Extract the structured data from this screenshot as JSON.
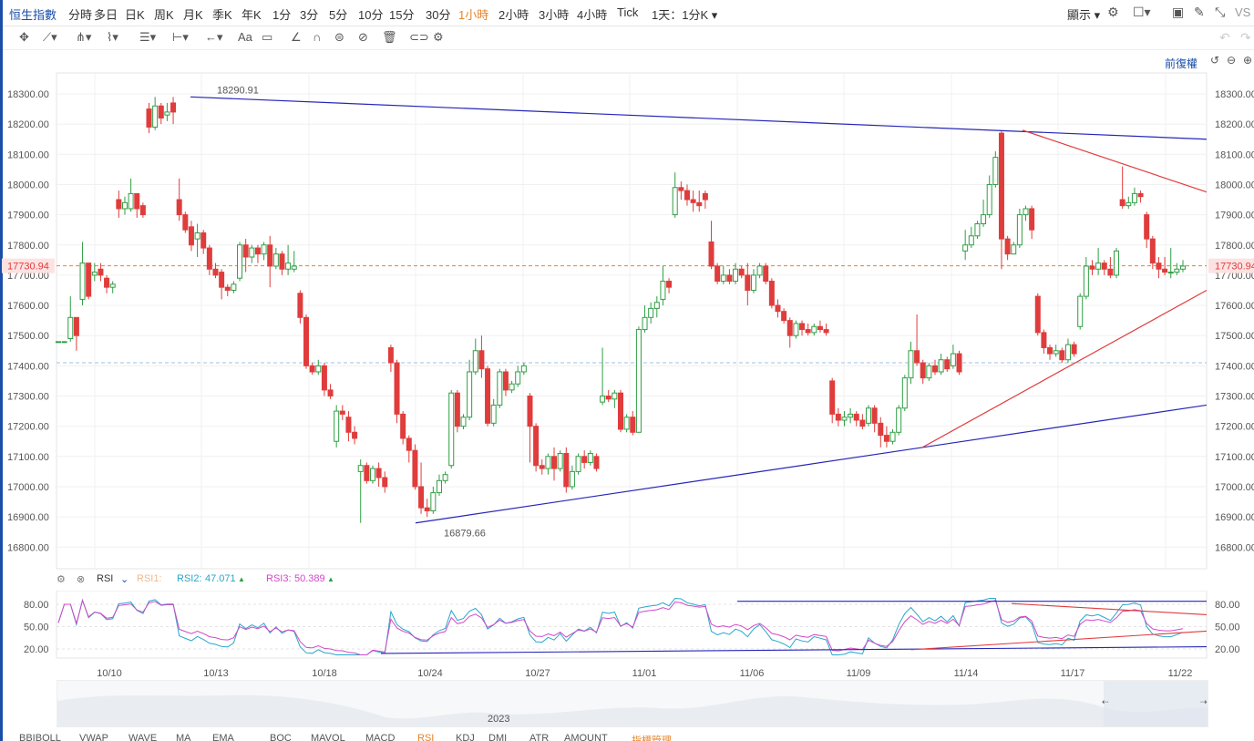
{
  "toolbar": {
    "title": "恒生指數",
    "intervals": [
      {
        "label": "分時",
        "active": false
      },
      {
        "label": "多日",
        "active": false
      },
      {
        "label": "日K",
        "active": false
      },
      {
        "label": "周K",
        "active": false
      },
      {
        "label": "月K",
        "active": false
      },
      {
        "label": "季K",
        "active": false
      },
      {
        "label": "年K",
        "active": false
      },
      {
        "label": "1分",
        "active": false
      },
      {
        "label": "3分",
        "active": false
      },
      {
        "label": "5分",
        "active": false
      },
      {
        "label": "10分",
        "active": false
      },
      {
        "label": "15分",
        "active": false
      },
      {
        "label": "30分",
        "active": false
      },
      {
        "label": "1小時",
        "active": true
      },
      {
        "label": "2小時",
        "active": false
      },
      {
        "label": "3小時",
        "active": false
      },
      {
        "label": "4小時",
        "active": false
      },
      {
        "label": "Tick",
        "active": false
      },
      {
        "label": "1天：1分K",
        "active": false
      }
    ],
    "display_label": "顯示",
    "vs_label": "VS"
  },
  "drawing_tools": [
    "crosshair-icon",
    "line-icon",
    "pitchfork-icon",
    "pattern-icon",
    "fib-icon",
    "measure-icon",
    "arrow-icon",
    "text-icon",
    "note-icon",
    "ruler-icon",
    "magnet-icon",
    "lock-icon",
    "hide-icon",
    "trash-icon",
    "eye-icon",
    "settings-icon"
  ],
  "adjust_label": "前復權",
  "price_axis": {
    "labels": [
      "18300.00",
      "18200.00",
      "18100.00",
      "18000.00",
      "17900.00",
      "17800.00",
      "17700.00",
      "17600.00",
      "17500.00",
      "17400.00",
      "17300.00",
      "17200.00",
      "17100.00",
      "17000.00",
      "16900.00",
      "16800.00"
    ],
    "last_price": "17730.94"
  },
  "annotations": {
    "high": "18290.91",
    "low": "16879.66"
  },
  "rsi": {
    "name": "RSI",
    "rsi1_label": "RSI1:",
    "rsi2_label": "RSI2:",
    "rsi2_value": "47.071",
    "rsi3_label": "RSI3:",
    "rsi3_value": "50.389",
    "axis": [
      "80.00",
      "50.00",
      "20.00"
    ]
  },
  "dates": [
    "10/10",
    "10/13",
    "10/18",
    "10/24",
    "10/27",
    "11/01",
    "11/06",
    "11/09",
    "11/14",
    "11/17",
    "11/22"
  ],
  "navigator_year": "2023",
  "bottom_indicators": [
    "BBIBOLL",
    "VWAP",
    "WAVE",
    "MA",
    "EMA",
    "BOC",
    "MAVOL",
    "MACD",
    "RSI",
    "KDJ",
    "DMI",
    "ATR",
    "AMOUNT",
    "指標管理"
  ],
  "colors": {
    "up": "#2f9e44",
    "down": "#e03c3c",
    "trend_blue": "#2626b8",
    "trend_red": "#e03c3c",
    "rsi2": "#2aa7c9",
    "rsi3": "#d048c8",
    "accent": "#e8832a"
  },
  "candles": [
    [
      17480,
      17480,
      17480,
      17480
    ],
    [
      17480,
      17480,
      17480,
      17480
    ],
    [
      17490,
      17560,
      17630,
      17480
    ],
    [
      17560,
      17500,
      17560,
      17450
    ],
    [
      17620,
      17740,
      17810,
      17600
    ],
    [
      17740,
      17630,
      17740,
      17620
    ],
    [
      17700,
      17710,
      17740,
      17680
    ],
    [
      17720,
      17700,
      17740,
      17680
    ],
    [
      17690,
      17660,
      17700,
      17640
    ],
    [
      17660,
      17670,
      17680,
      17640
    ],
    [
      17950,
      17920,
      17980,
      17890
    ],
    [
      17920,
      17940,
      17960,
      17900
    ],
    [
      17920,
      17970,
      18020,
      17910
    ],
    [
      17970,
      17920,
      17970,
      17890
    ],
    [
      17930,
      17900,
      17940,
      17890
    ],
    [
      18250,
      18190,
      18270,
      18170
    ],
    [
      18190,
      18260,
      18290,
      18180
    ],
    [
      18260,
      18220,
      18270,
      18200
    ],
    [
      18230,
      18240,
      18270,
      18210
    ],
    [
      18270,
      18240,
      18290,
      18200
    ],
    [
      17950,
      17900,
      18020,
      17880
    ],
    [
      17900,
      17850,
      17910,
      17840
    ],
    [
      17860,
      17800,
      17880,
      17780
    ],
    [
      17820,
      17840,
      17870,
      17760
    ],
    [
      17840,
      17790,
      17850,
      17770
    ],
    [
      17790,
      17720,
      17800,
      17700
    ],
    [
      17720,
      17700,
      17740,
      17690
    ],
    [
      17710,
      17660,
      17720,
      17620
    ],
    [
      17660,
      17650,
      17670,
      17630
    ],
    [
      17650,
      17670,
      17680,
      17640
    ],
    [
      17690,
      17800,
      17810,
      17680
    ],
    [
      17800,
      17760,
      17820,
      17710
    ],
    [
      17760,
      17790,
      17800,
      17740
    ],
    [
      17790,
      17770,
      17800,
      17740
    ],
    [
      17770,
      17800,
      17810,
      17750
    ],
    [
      17800,
      17730,
      17830,
      17660
    ],
    [
      17730,
      17770,
      17790,
      17720
    ],
    [
      17770,
      17720,
      17780,
      17700
    ],
    [
      17720,
      17740,
      17800,
      17700
    ],
    [
      17720,
      17730,
      17780,
      17710
    ],
    [
      17640,
      17560,
      17650,
      17540
    ],
    [
      17560,
      17400,
      17570,
      17390
    ],
    [
      17400,
      17380,
      17410,
      17370
    ],
    [
      17380,
      17400,
      17420,
      17370
    ],
    [
      17400,
      17320,
      17410,
      17300
    ],
    [
      17320,
      17300,
      17340,
      17290
    ],
    [
      17150,
      17250,
      17270,
      17130
    ],
    [
      17250,
      17240,
      17270,
      17220
    ],
    [
      17230,
      17180,
      17250,
      17150
    ],
    [
      17180,
      17160,
      17200,
      17140
    ],
    [
      17050,
      17070,
      17090,
      16880
    ],
    [
      17070,
      17020,
      17080,
      17010
    ],
    [
      17020,
      17060,
      17070,
      17010
    ],
    [
      17060,
      17030,
      17080,
      17000
    ],
    [
      17030,
      17000,
      17050,
      16980
    ],
    [
      17460,
      17410,
      17470,
      17380
    ],
    [
      17410,
      17240,
      17420,
      17210
    ],
    [
      17240,
      17160,
      17250,
      17140
    ],
    [
      17160,
      17120,
      17170,
      17080
    ],
    [
      17120,
      17000,
      17140,
      16990
    ],
    [
      17000,
      16930,
      17080,
      16910
    ],
    [
      16930,
      16920,
      16960,
      16900
    ],
    [
      16920,
      16980,
      17000,
      16910
    ],
    [
      16980,
      17020,
      17040,
      16970
    ],
    [
      17020,
      17040,
      17050,
      17010
    ],
    [
      17070,
      17310,
      17320,
      17060
    ],
    [
      17310,
      17200,
      17320,
      17180
    ],
    [
      17200,
      17230,
      17240,
      17190
    ],
    [
      17230,
      17380,
      17420,
      17220
    ],
    [
      17380,
      17450,
      17490,
      17370
    ],
    [
      17450,
      17390,
      17500,
      17360
    ],
    [
      17390,
      17210,
      17400,
      17200
    ],
    [
      17210,
      17270,
      17290,
      17200
    ],
    [
      17270,
      17380,
      17390,
      17260
    ],
    [
      17380,
      17320,
      17390,
      17300
    ],
    [
      17320,
      17340,
      17350,
      17310
    ],
    [
      17340,
      17380,
      17400,
      17330
    ],
    [
      17380,
      17400,
      17410,
      17370
    ],
    [
      17300,
      17200,
      17310,
      17080
    ],
    [
      17200,
      17070,
      17210,
      17050
    ],
    [
      17070,
      17060,
      17090,
      17040
    ],
    [
      17060,
      17100,
      17110,
      17040
    ],
    [
      17100,
      17060,
      17130,
      17020
    ],
    [
      17060,
      17110,
      17120,
      17050
    ],
    [
      17110,
      17000,
      17130,
      16980
    ],
    [
      17000,
      17050,
      17070,
      16990
    ],
    [
      17050,
      17100,
      17110,
      17040
    ],
    [
      17100,
      17080,
      17120,
      17060
    ],
    [
      17080,
      17110,
      17120,
      17070
    ],
    [
      17100,
      17060,
      17110,
      17050
    ],
    [
      17280,
      17300,
      17460,
      17270
    ],
    [
      17300,
      17290,
      17320,
      17280
    ],
    [
      17290,
      17310,
      17320,
      17260
    ],
    [
      17310,
      17190,
      17320,
      17180
    ],
    [
      17190,
      17230,
      17240,
      17180
    ],
    [
      17230,
      17180,
      17250,
      17170
    ],
    [
      17180,
      17520,
      17530,
      17360
    ],
    [
      17520,
      17560,
      17600,
      17510
    ],
    [
      17560,
      17590,
      17610,
      17540
    ],
    [
      17590,
      17610,
      17630,
      17560
    ],
    [
      17620,
      17680,
      17730,
      17600
    ],
    [
      17680,
      17660,
      17690,
      17640
    ],
    [
      17900,
      17990,
      18040,
      17890
    ],
    [
      17990,
      17980,
      18010,
      17950
    ],
    [
      17980,
      17950,
      18000,
      17930
    ],
    [
      17950,
      17940,
      17980,
      17910
    ],
    [
      17940,
      17930,
      17980,
      17910
    ],
    [
      17970,
      17950,
      17980,
      17920
    ],
    [
      17810,
      17730,
      17880,
      17720
    ],
    [
      17730,
      17680,
      17740,
      17670
    ],
    [
      17680,
      17700,
      17730,
      17670
    ],
    [
      17700,
      17680,
      17720,
      17670
    ],
    [
      17680,
      17720,
      17740,
      17670
    ],
    [
      17720,
      17700,
      17730,
      17690
    ],
    [
      17700,
      17650,
      17740,
      17600
    ],
    [
      17650,
      17700,
      17720,
      17640
    ],
    [
      17700,
      17730,
      17740,
      17690
    ],
    [
      17730,
      17680,
      17740,
      17670
    ],
    [
      17680,
      17600,
      17690,
      17590
    ],
    [
      17600,
      17580,
      17620,
      17560
    ],
    [
      17580,
      17550,
      17590,
      17540
    ],
    [
      17550,
      17500,
      17560,
      17460
    ],
    [
      17500,
      17540,
      17550,
      17490
    ],
    [
      17540,
      17520,
      17550,
      17500
    ],
    [
      17520,
      17510,
      17540,
      17500
    ],
    [
      17510,
      17530,
      17540,
      17500
    ],
    [
      17530,
      17520,
      17550,
      17510
    ],
    [
      17520,
      17510,
      17540,
      17500
    ],
    [
      17350,
      17240,
      17360,
      17210
    ],
    [
      17240,
      17220,
      17260,
      17200
    ],
    [
      17220,
      17230,
      17250,
      17200
    ],
    [
      17230,
      17240,
      17260,
      17210
    ],
    [
      17240,
      17220,
      17250,
      17200
    ],
    [
      17220,
      17200,
      17240,
      17190
    ],
    [
      17210,
      17260,
      17270,
      17200
    ],
    [
      17260,
      17210,
      17270,
      17180
    ],
    [
      17210,
      17170,
      17230,
      17130
    ],
    [
      17170,
      17150,
      17200,
      17130
    ],
    [
      17150,
      17180,
      17190,
      17140
    ],
    [
      17180,
      17260,
      17270,
      17170
    ],
    [
      17260,
      17360,
      17370,
      17250
    ],
    [
      17360,
      17450,
      17480,
      17340
    ],
    [
      17450,
      17410,
      17570,
      17400
    ],
    [
      17410,
      17360,
      17420,
      17340
    ],
    [
      17360,
      17400,
      17410,
      17350
    ],
    [
      17400,
      17380,
      17420,
      17370
    ],
    [
      17380,
      17420,
      17440,
      17370
    ],
    [
      17420,
      17390,
      17430,
      17380
    ],
    [
      17400,
      17440,
      17470,
      17390
    ],
    [
      17440,
      17380,
      17450,
      17370
    ],
    [
      17780,
      17800,
      17850,
      17750
    ],
    [
      17800,
      17830,
      17860,
      17790
    ],
    [
      17830,
      17870,
      17880,
      17820
    ],
    [
      17870,
      17900,
      17950,
      17860
    ],
    [
      17900,
      18000,
      18030,
      17890
    ],
    [
      18000,
      18090,
      18110,
      17990
    ],
    [
      18170,
      17820,
      18180,
      17720
    ],
    [
      17820,
      17770,
      17830,
      17750
    ],
    [
      17770,
      17800,
      17810,
      17770
    ],
    [
      17800,
      17900,
      17920,
      17790
    ],
    [
      17900,
      17920,
      17930,
      17880
    ],
    [
      17920,
      17850,
      17930,
      17820
    ],
    [
      17630,
      17510,
      17640,
      17500
    ],
    [
      17510,
      17460,
      17520,
      17440
    ],
    [
      17460,
      17440,
      17470,
      17420
    ],
    [
      17440,
      17450,
      17470,
      17430
    ],
    [
      17450,
      17420,
      17460,
      17410
    ],
    [
      17420,
      17470,
      17490,
      17410
    ],
    [
      17470,
      17440,
      17480,
      17430
    ],
    [
      17530,
      17630,
      17640,
      17520
    ],
    [
      17630,
      17730,
      17760,
      17620
    ],
    [
      17730,
      17720,
      17750,
      17700
    ],
    [
      17720,
      17740,
      17790,
      17700
    ],
    [
      17740,
      17720,
      17750,
      17700
    ],
    [
      17720,
      17700,
      17760,
      17690
    ],
    [
      17700,
      17780,
      17790,
      17690
    ],
    [
      17950,
      17930,
      18060,
      17920
    ],
    [
      17930,
      17940,
      17960,
      17920
    ],
    [
      17940,
      17970,
      17990,
      17930
    ],
    [
      17970,
      17960,
      17980,
      17940
    ],
    [
      17900,
      17820,
      17910,
      17790
    ],
    [
      17820,
      17740,
      17830,
      17720
    ],
    [
      17740,
      17720,
      17760,
      17690
    ],
    [
      17720,
      17710,
      17760,
      17700
    ],
    [
      17710,
      17710,
      17790,
      17690
    ],
    [
      17710,
      17720,
      17740,
      17700
    ],
    [
      17720,
      17730,
      17750,
      17710
    ]
  ]
}
